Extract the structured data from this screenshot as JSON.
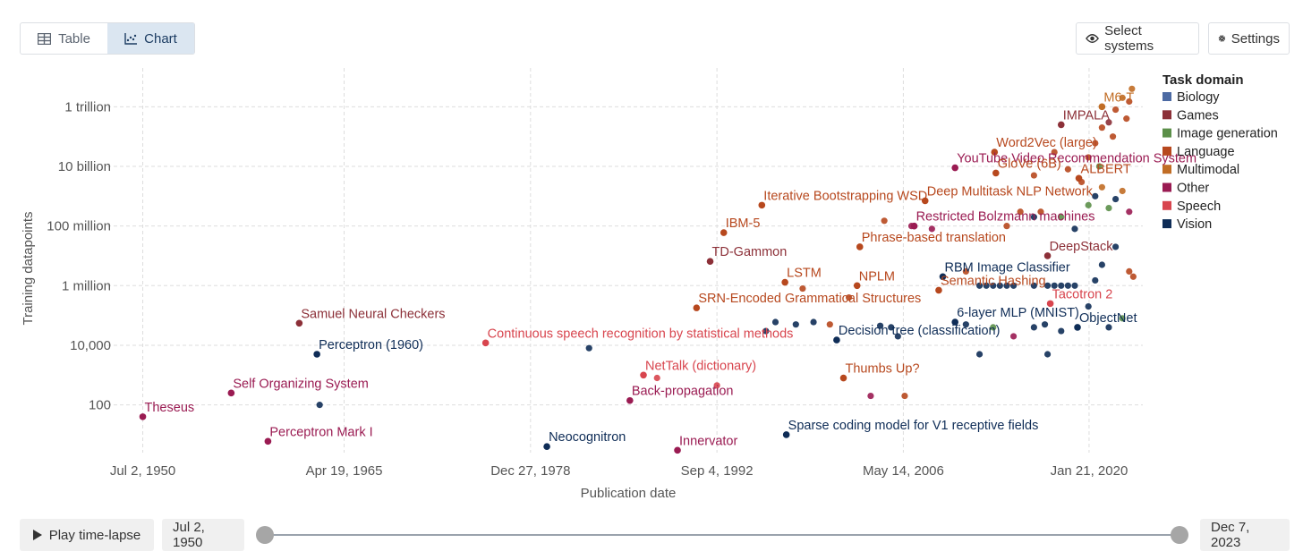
{
  "tabs": [
    {
      "label": "Table",
      "icon": "table-icon",
      "active": false
    },
    {
      "label": "Chart",
      "icon": "chart-icon",
      "active": true
    }
  ],
  "toolbar": {
    "select_systems": "Select systems",
    "settings": "Settings"
  },
  "controls": {
    "play_label": "Play time-lapse",
    "start_date": "Jul 2, 1950",
    "end_date": "Dec 7, 2023"
  },
  "colors": {
    "Biology": "#4c6aa3",
    "Games": "#8c3038",
    "Image generation": "#5b8f49",
    "Language": "#b7481e",
    "Multimodal": "#c16d25",
    "Other": "#9a1b52",
    "Speech": "#d8454e",
    "Vision": "#0f2d57"
  },
  "chart_data": {
    "type": "scatter",
    "xlabel": "Publication date",
    "ylabel": "Training datapoints",
    "y_scale": "log",
    "x_tick_labels": [
      "Jul 2, 1950",
      "Apr 19, 1965",
      "Dec 27, 1978",
      "Sep 4, 1992",
      "May 14, 2006",
      "Jan 21, 2020"
    ],
    "x_ticks": [
      1950.5,
      1965.3,
      1979.0,
      1992.7,
      2006.4,
      2020.05
    ],
    "y_tick_labels": [
      "100",
      "10,000",
      "1 million",
      "100 million",
      "10 billion",
      "1 trillion"
    ],
    "y_ticks": [
      100,
      10000,
      1000000,
      100000000,
      10000000000,
      1000000000000
    ],
    "xlim": [
      1947.9,
      2024.0
    ],
    "ylim": [
      2.5,
      20000000000000
    ],
    "legend_title": "Task domain",
    "legend_position": "right",
    "legend": [
      "Biology",
      "Games",
      "Image generation",
      "Language",
      "Multimodal",
      "Other",
      "Speech",
      "Vision"
    ],
    "labeled_points": [
      {
        "label": "Theseus",
        "date": "1950-07",
        "x": 1950.5,
        "y": 40,
        "domain": "Other"
      },
      {
        "label": "Self Organizing System",
        "date": "1957",
        "x": 1957.0,
        "y": 250,
        "domain": "Other"
      },
      {
        "label": "Perceptron Mark I",
        "date": "1959",
        "x": 1959.7,
        "y": 6,
        "domain": "Other"
      },
      {
        "label": "Samuel Neural Checkers",
        "date": "1962",
        "x": 1962.0,
        "y": 55000,
        "domain": "Games"
      },
      {
        "label": "Perceptron (1960)",
        "date": "1963",
        "x": 1963.3,
        "y": 5000,
        "domain": "Vision"
      },
      {
        "label": "Continuous speech recognition by statistical methods",
        "date": "1976",
        "x": 1975.7,
        "y": 12000,
        "domain": "Speech"
      },
      {
        "label": "Neocognitron",
        "date": "1980",
        "x": 1980.2,
        "y": 4,
        "domain": "Vision"
      },
      {
        "label": "Back-propagation",
        "date": "1986",
        "x": 1986.3,
        "y": 140,
        "domain": "Other"
      },
      {
        "label": "Innervator",
        "date": "1989",
        "x": 1989.8,
        "y": 3,
        "domain": "Other"
      },
      {
        "label": "NetTalk (dictionary)",
        "date": "1987",
        "x": 1987.3,
        "y": 1000,
        "domain": "Speech"
      },
      {
        "label": "SRN-Encoded Grammatical Structures",
        "date": "1991",
        "x": 1991.2,
        "y": 180000,
        "domain": "Language"
      },
      {
        "label": "TD-Gammon",
        "date": "1992",
        "x": 1992.2,
        "y": 6500000,
        "domain": "Games"
      },
      {
        "label": "IBM-5",
        "date": "1993",
        "x": 1993.2,
        "y": 60000000,
        "domain": "Language"
      },
      {
        "label": "Iterative Bootstrapping WSD",
        "date": "1996",
        "x": 1996.0,
        "y": 500000000,
        "domain": "Language"
      },
      {
        "label": "LSTM",
        "date": "1997",
        "x": 1997.7,
        "y": 1300000,
        "domain": "Language"
      },
      {
        "label": "Sparse coding model for V1 receptive fields",
        "date": "1997",
        "x": 1997.8,
        "y": 10,
        "domain": "Vision"
      },
      {
        "label": "Phrase-based translation",
        "date": "2003",
        "x": 2003.2,
        "y": 20000000,
        "domain": "Language"
      },
      {
        "label": "NPLM",
        "date": "2003",
        "x": 2003.0,
        "y": 1000000,
        "domain": "Language"
      },
      {
        "label": "Thumbs Up?",
        "date": "2002",
        "x": 2002.0,
        "y": 800,
        "domain": "Language"
      },
      {
        "label": "Decision tree (classification)",
        "date": "2001",
        "x": 2001.5,
        "y": 15000,
        "domain": "Vision"
      },
      {
        "label": "YouTube Video Recommendation System",
        "date": "2010",
        "x": 2010.2,
        "y": 9000000000,
        "domain": "Other"
      },
      {
        "label": "Deep Multitask NLP Network",
        "date": "2008",
        "x": 2008.0,
        "y": 700000000,
        "domain": "Language"
      },
      {
        "label": "Restricted Bolzmann machines",
        "date": "2007",
        "x": 2007.2,
        "y": 100000000,
        "domain": "Other"
      },
      {
        "label": "RBM Image Classifier",
        "date": "2009",
        "x": 2009.3,
        "y": 2000000,
        "domain": "Vision"
      },
      {
        "label": "Semantic Hashing",
        "date": "2009",
        "x": 2009.0,
        "y": 700000,
        "domain": "Language"
      },
      {
        "label": "6-layer MLP (MNIST)",
        "date": "2010",
        "x": 2010.2,
        "y": 60000,
        "domain": "Vision"
      },
      {
        "label": "Word2Vec (large)",
        "date": "2013",
        "x": 2013.1,
        "y": 30000000000,
        "domain": "Language"
      },
      {
        "label": "GloVe (6B)",
        "date": "2013",
        "x": 2013.2,
        "y": 6000000000,
        "domain": "Language"
      },
      {
        "label": "DeepStack",
        "date": "2017",
        "x": 2017.0,
        "y": 10000000,
        "domain": "Games"
      },
      {
        "label": "Tacotron 2",
        "date": "2017",
        "x": 2017.2,
        "y": 250000,
        "domain": "Speech"
      },
      {
        "label": "IMPALA",
        "date": "2018",
        "x": 2018.0,
        "y": 250000000000,
        "domain": "Games"
      },
      {
        "label": "ALBERT",
        "date": "2019",
        "x": 2019.3,
        "y": 4000000000,
        "domain": "Language"
      },
      {
        "label": "ObjectNet",
        "date": "2019",
        "x": 2019.2,
        "y": 40000,
        "domain": "Vision"
      },
      {
        "label": "M6-T",
        "date": "2021",
        "x": 2021.0,
        "y": 1000000000000,
        "domain": "Multimodal"
      }
    ],
    "points": [
      {
        "x": 1963.5,
        "y": 100,
        "domain": "Vision"
      },
      {
        "x": 1983.3,
        "y": 8000,
        "domain": "Vision"
      },
      {
        "x": 1988.3,
        "y": 800,
        "domain": "Speech"
      },
      {
        "x": 1992.7,
        "y": 450,
        "domain": "Speech"
      },
      {
        "x": 1996.3,
        "y": 30000,
        "domain": "Vision"
      },
      {
        "x": 1997.0,
        "y": 60000,
        "domain": "Vision"
      },
      {
        "x": 1998.5,
        "y": 50000,
        "domain": "Vision"
      },
      {
        "x": 1999.8,
        "y": 60000,
        "domain": "Vision"
      },
      {
        "x": 2001.0,
        "y": 50000,
        "domain": "Language"
      },
      {
        "x": 1999.0,
        "y": 800000,
        "domain": "Language"
      },
      {
        "x": 2002.4,
        "y": 400000,
        "domain": "Language"
      },
      {
        "x": 2004.7,
        "y": 45000,
        "domain": "Vision"
      },
      {
        "x": 2005.5,
        "y": 40000,
        "domain": "Vision"
      },
      {
        "x": 2006.0,
        "y": 20000,
        "domain": "Vision"
      },
      {
        "x": 2004.0,
        "y": 200,
        "domain": "Other"
      },
      {
        "x": 2006.5,
        "y": 200,
        "domain": "Language"
      },
      {
        "x": 2005.0,
        "y": 150000000,
        "domain": "Language"
      },
      {
        "x": 2007.0,
        "y": 100000000,
        "domain": "Other"
      },
      {
        "x": 2008.5,
        "y": 80000000,
        "domain": "Other"
      },
      {
        "x": 2011.0,
        "y": 3000000,
        "domain": "Language"
      },
      {
        "x": 2012.0,
        "y": 1000000,
        "domain": "Vision"
      },
      {
        "x": 2012.5,
        "y": 1000000,
        "domain": "Vision"
      },
      {
        "x": 2013.0,
        "y": 1000000,
        "domain": "Vision"
      },
      {
        "x": 2013.5,
        "y": 1000000,
        "domain": "Vision"
      },
      {
        "x": 2014.0,
        "y": 1000000,
        "domain": "Vision"
      },
      {
        "x": 2014.5,
        "y": 1000000,
        "domain": "Vision"
      },
      {
        "x": 2016.0,
        "y": 1000000,
        "domain": "Vision"
      },
      {
        "x": 2017.0,
        "y": 1000000,
        "domain": "Vision"
      },
      {
        "x": 2017.5,
        "y": 1000000,
        "domain": "Vision"
      },
      {
        "x": 2018.0,
        "y": 1000000,
        "domain": "Vision"
      },
      {
        "x": 2018.5,
        "y": 1000000,
        "domain": "Vision"
      },
      {
        "x": 2019.0,
        "y": 1000000,
        "domain": "Vision"
      },
      {
        "x": 2011.0,
        "y": 50000,
        "domain": "Vision"
      },
      {
        "x": 2013.0,
        "y": 40000,
        "domain": "Image generation"
      },
      {
        "x": 2014.5,
        "y": 20000,
        "domain": "Other"
      },
      {
        "x": 2016.0,
        "y": 40000,
        "domain": "Vision"
      },
      {
        "x": 2016.8,
        "y": 50000,
        "domain": "Vision"
      },
      {
        "x": 2018.0,
        "y": 30000,
        "domain": "Vision"
      },
      {
        "x": 2012.0,
        "y": 5000,
        "domain": "Vision"
      },
      {
        "x": 2017.0,
        "y": 5000,
        "domain": "Vision"
      },
      {
        "x": 2014.0,
        "y": 100000000,
        "domain": "Language"
      },
      {
        "x": 2015.0,
        "y": 300000000,
        "domain": "Language"
      },
      {
        "x": 2016.0,
        "y": 200000000,
        "domain": "Vision"
      },
      {
        "x": 2016.5,
        "y": 300000000,
        "domain": "Language"
      },
      {
        "x": 2018.0,
        "y": 200000000,
        "domain": "Image generation"
      },
      {
        "x": 2019.0,
        "y": 80000000,
        "domain": "Vision"
      },
      {
        "x": 2020.0,
        "y": 500000000,
        "domain": "Image generation"
      },
      {
        "x": 2020.5,
        "y": 1000000000,
        "domain": "Vision"
      },
      {
        "x": 2021.0,
        "y": 2000000000,
        "domain": "Multimodal"
      },
      {
        "x": 2021.5,
        "y": 400000000,
        "domain": "Image generation"
      },
      {
        "x": 2022.0,
        "y": 800000000,
        "domain": "Vision"
      },
      {
        "x": 2022.5,
        "y": 1500000000,
        "domain": "Multimodal"
      },
      {
        "x": 2023.0,
        "y": 300000000,
        "domain": "Other"
      },
      {
        "x": 2020.0,
        "y": 20000000000,
        "domain": "Language"
      },
      {
        "x": 2020.5,
        "y": 60000000000,
        "domain": "Language"
      },
      {
        "x": 2021.0,
        "y": 200000000000,
        "domain": "Language"
      },
      {
        "x": 2021.5,
        "y": 300000000000,
        "domain": "Games"
      },
      {
        "x": 2022.0,
        "y": 800000000000,
        "domain": "Language"
      },
      {
        "x": 2022.5,
        "y": 2000000000000,
        "domain": "Multimodal"
      },
      {
        "x": 2023.0,
        "y": 1500000000000,
        "domain": "Language"
      },
      {
        "x": 2023.2,
        "y": 4000000000000,
        "domain": "Multimodal"
      },
      {
        "x": 2022.8,
        "y": 400000000000,
        "domain": "Language"
      },
      {
        "x": 2021.8,
        "y": 100000000000,
        "domain": "Language"
      },
      {
        "x": 2020.8,
        "y": 10000000000,
        "domain": "Image generation"
      },
      {
        "x": 2019.5,
        "y": 3000000000,
        "domain": "Language"
      },
      {
        "x": 2018.5,
        "y": 8000000000,
        "domain": "Language"
      },
      {
        "x": 2017.5,
        "y": 30000000000,
        "domain": "Language"
      },
      {
        "x": 2016.0,
        "y": 5000000000,
        "domain": "Language"
      },
      {
        "x": 2022.0,
        "y": 20000000,
        "domain": "Vision"
      },
      {
        "x": 2021.0,
        "y": 5000000,
        "domain": "Vision"
      },
      {
        "x": 2020.5,
        "y": 1500000,
        "domain": "Vision"
      },
      {
        "x": 2023.0,
        "y": 3000000,
        "domain": "Language"
      },
      {
        "x": 2023.3,
        "y": 2000000,
        "domain": "Language"
      },
      {
        "x": 2022.5,
        "y": 80000,
        "domain": "Image generation"
      },
      {
        "x": 2021.5,
        "y": 40000,
        "domain": "Vision"
      },
      {
        "x": 2020.0,
        "y": 200000,
        "domain": "Vision"
      }
    ]
  }
}
